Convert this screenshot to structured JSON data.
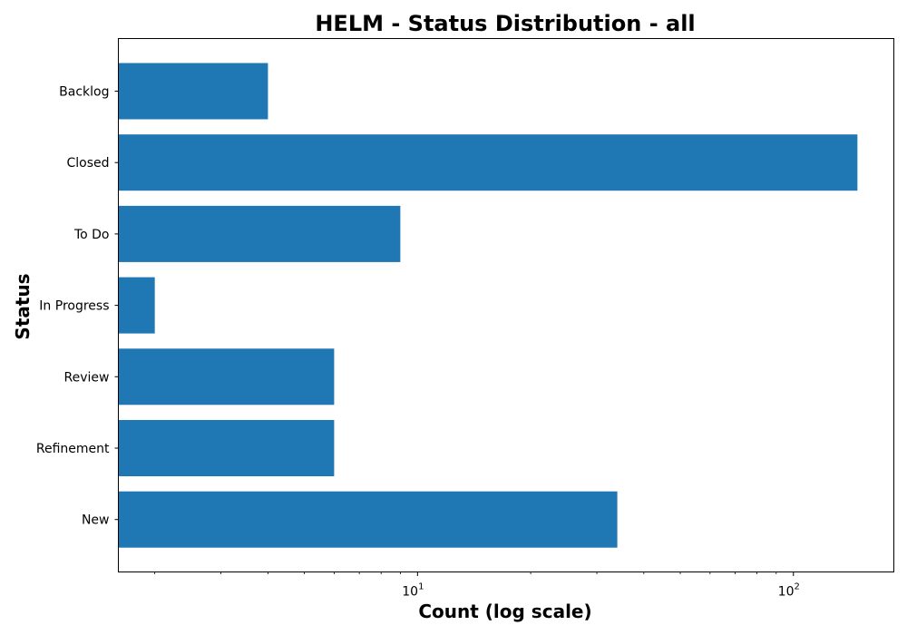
{
  "chart_data": {
    "type": "bar",
    "orientation": "horizontal",
    "title": "HELM - Status Distribution - all",
    "xlabel": "Count (log scale)",
    "ylabel": "Status",
    "x_scale": "log",
    "xlim": [
      1.6,
      185
    ],
    "x_ticks": [
      {
        "value": 10,
        "base": "10",
        "exponent": "1"
      },
      {
        "value": 100,
        "base": "10",
        "exponent": "2"
      }
    ],
    "categories": [
      "Backlog",
      "Closed",
      "To Do",
      "In Progress",
      "Review",
      "Refinement",
      "New"
    ],
    "values": [
      4,
      148,
      9,
      2,
      6,
      6,
      34
    ],
    "bar_color": "#1f77b4",
    "grid": false,
    "legend": "none"
  }
}
